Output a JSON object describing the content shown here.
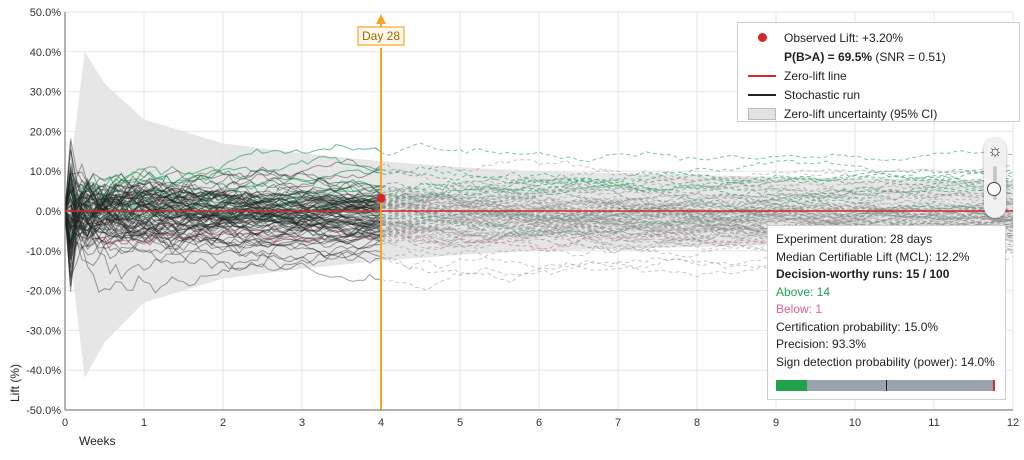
{
  "chart_data": {
    "type": "line",
    "xlabel": "Weeks",
    "ylabel": "Lift (%)",
    "xlim": [
      0,
      12
    ],
    "ylim": [
      -50,
      50
    ],
    "x_ticks": [
      "0",
      "1",
      "2",
      "3",
      "4",
      "5",
      "6",
      "7",
      "8",
      "9",
      "10",
      "11",
      "12"
    ],
    "y_ticks": [
      "50.0%",
      "40.0%",
      "30.0%",
      "20.0%",
      "10.0%",
      "0.0%",
      "-10.0%",
      "-20.0%",
      "-30.0%",
      "-40.0%",
      "-50.0%"
    ],
    "grid": true,
    "zero_lift_line": 0,
    "day_marker": {
      "week": 4.0,
      "label": "Day 28"
    },
    "observed_point": {
      "week": 4.0,
      "lift": 3.2
    },
    "ci_band": {
      "weeks": [
        0,
        0.25,
        0.5,
        1,
        2,
        3,
        4,
        5,
        6,
        7,
        8,
        9,
        10,
        11,
        12
      ],
      "upper": [
        0,
        40,
        32,
        23,
        17,
        14.5,
        12.5,
        11,
        10,
        9.5,
        9,
        8.6,
        8.2,
        7.9,
        7.6
      ],
      "lower": [
        0,
        -42,
        -33,
        -23,
        -17,
        -14.5,
        -12.5,
        -11,
        -10,
        -9.5,
        -9,
        -8.6,
        -8.2,
        -7.9,
        -7.6
      ]
    },
    "runs": {
      "total": 100,
      "above": 14,
      "below": 1,
      "observed_weeks": 4,
      "horizon_weeks": 12
    }
  },
  "legend": {
    "observed_lift": "Observed Lift: +3.20%",
    "prob_bold": "P(B>A) = 69.5%",
    "prob_rest": " (SNR = 0.51)",
    "zero_line": "Zero-lift line",
    "stochastic": "Stochastic run",
    "uncertainty": "Zero-lift uncertainty (95% CI)"
  },
  "stats": {
    "duration": "Experiment duration: 28 days",
    "mcl": "Median Certifiable Lift (MCL): 12.2%",
    "decision": "Decision-worthy runs: 15 / 100",
    "above": "Above: 14",
    "below": "Below: 1",
    "certification": "Certification probability: 15.0%",
    "precision": "Precision: 93.3%",
    "power": "Sign detection probability (power): 14.0%",
    "meter_fill": 0.14,
    "meter_marker": 0.5
  },
  "colors": {
    "zero_line": "#d62728",
    "run_black": "#222222",
    "run_green": "#2aa060",
    "run_pink": "#e05a8a",
    "marker": "#f5a623",
    "band": "#e2e2e2",
    "grid": "#e6e6e6"
  },
  "toolbar": {
    "sun_icon": "sun-icon",
    "toggle": "theme-toggle"
  }
}
